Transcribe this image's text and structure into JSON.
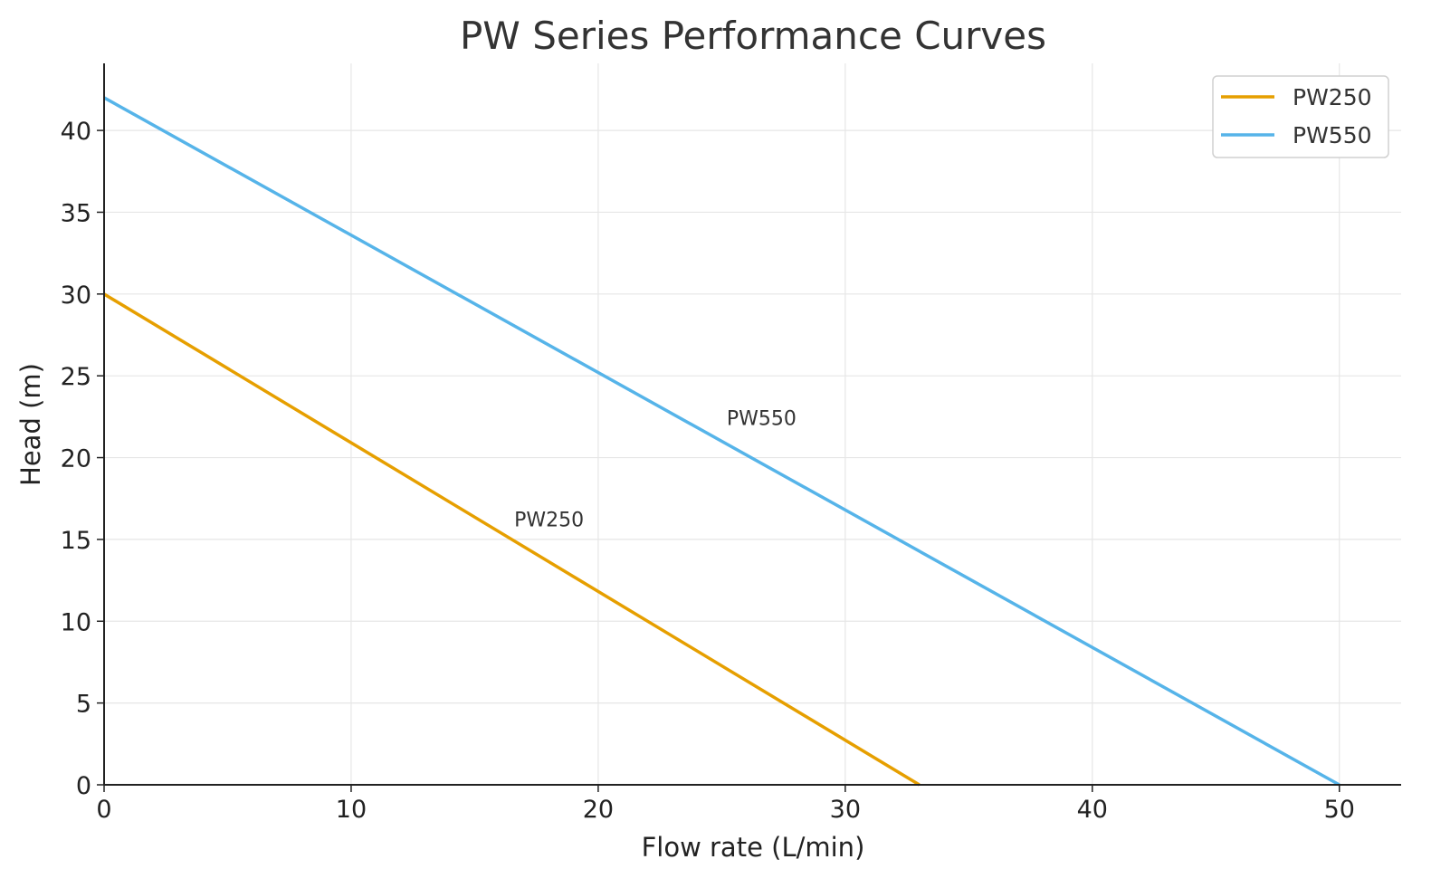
{
  "chart_data": {
    "type": "line",
    "title": "PW Series Performance Curves",
    "xlabel": "Flow rate (L/min)",
    "ylabel": "Head (m)",
    "xlim": [
      0,
      52.5
    ],
    "ylim": [
      0,
      44.1
    ],
    "xticks": [
      0,
      10,
      20,
      30,
      40,
      50
    ],
    "yticks": [
      0,
      5,
      10,
      15,
      20,
      25,
      30,
      35,
      40
    ],
    "grid": true,
    "legend_position": "top-right",
    "series": [
      {
        "name": "PW250",
        "color": "#E69F00",
        "x": [
          0,
          33
        ],
        "y": [
          30,
          0
        ]
      },
      {
        "name": "PW550",
        "color": "#56B4E9",
        "x": [
          0,
          50
        ],
        "y": [
          42,
          0
        ]
      }
    ],
    "annotations": [
      {
        "text": "PW250",
        "x": 16.6,
        "y": 15.8
      },
      {
        "text": "PW550",
        "x": 25.2,
        "y": 22.0
      }
    ]
  }
}
